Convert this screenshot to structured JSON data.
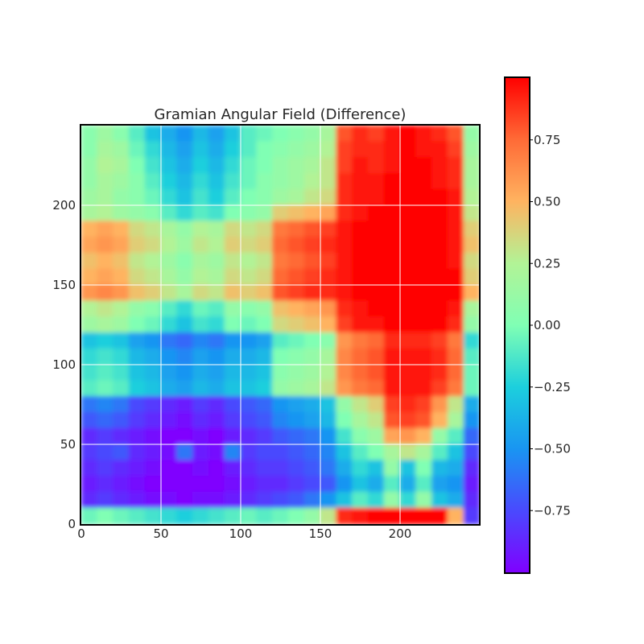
{
  "chart_data": {
    "type": "heatmap",
    "title": "Gramian Angular Field (Difference)",
    "xlabel": "",
    "ylabel": "",
    "xlim": [
      0,
      250
    ],
    "ylim": [
      0,
      250
    ],
    "grid": true,
    "origin": "lower",
    "x_ticks": [
      0,
      50,
      100,
      150,
      200
    ],
    "y_ticks": [
      0,
      50,
      100,
      150,
      200
    ],
    "colormap": "rainbow",
    "colorbar": {
      "range": [
        -1.0,
        1.0
      ],
      "ticks": [
        -0.75,
        -0.5,
        -0.25,
        0.0,
        0.25,
        0.5,
        0.75
      ],
      "tick_labels": [
        "−0.75",
        "−0.50",
        "−0.25",
        "0.00",
        "0.25",
        "0.50",
        "0.75"
      ]
    },
    "grid_resolution": [
      25,
      25
    ],
    "values": [
      [
        0.05,
        0.15,
        0.05,
        -0.1,
        -0.3,
        -0.4,
        -0.5,
        -0.35,
        -0.45,
        -0.3,
        -0.1,
        -0.05,
        0.0,
        0.05,
        0.1,
        0.2,
        0.8,
        0.9,
        0.85,
        0.95,
        1.0,
        0.95,
        0.9,
        0.8,
        0.1
      ],
      [
        0.05,
        0.2,
        0.15,
        -0.05,
        -0.2,
        -0.35,
        -0.45,
        -0.3,
        -0.4,
        -0.25,
        -0.1,
        0.0,
        0.05,
        0.1,
        0.15,
        0.25,
        0.85,
        0.9,
        0.9,
        0.95,
        1.0,
        0.95,
        0.95,
        0.85,
        0.15
      ],
      [
        0.1,
        0.25,
        0.2,
        0.0,
        -0.15,
        -0.3,
        -0.4,
        -0.25,
        -0.35,
        -0.2,
        -0.05,
        0.0,
        0.1,
        0.15,
        0.2,
        0.3,
        0.85,
        0.95,
        0.9,
        0.95,
        1.0,
        1.0,
        0.95,
        0.9,
        0.2
      ],
      [
        0.1,
        0.2,
        0.15,
        0.05,
        -0.1,
        -0.25,
        -0.35,
        -0.2,
        -0.3,
        -0.15,
        -0.05,
        0.05,
        0.1,
        0.15,
        0.25,
        0.3,
        0.9,
        0.95,
        0.95,
        1.0,
        1.0,
        1.0,
        0.95,
        0.9,
        0.2
      ],
      [
        0.15,
        0.2,
        0.1,
        0.05,
        -0.05,
        -0.2,
        -0.3,
        -0.15,
        -0.25,
        -0.1,
        0.0,
        0.05,
        0.15,
        0.2,
        0.3,
        0.35,
        0.9,
        0.95,
        0.95,
        1.0,
        1.0,
        1.0,
        1.0,
        0.95,
        0.25
      ],
      [
        0.2,
        0.25,
        0.15,
        0.1,
        0.05,
        -0.1,
        -0.2,
        -0.1,
        -0.15,
        0.0,
        0.05,
        0.1,
        0.4,
        0.45,
        0.5,
        0.55,
        0.9,
        0.95,
        1.0,
        1.0,
        1.0,
        1.0,
        1.0,
        0.95,
        0.3
      ],
      [
        0.5,
        0.55,
        0.5,
        0.35,
        0.3,
        0.2,
        0.1,
        0.25,
        0.2,
        0.35,
        0.3,
        0.35,
        0.7,
        0.75,
        0.8,
        0.85,
        0.95,
        1.0,
        1.0,
        1.0,
        1.0,
        1.0,
        1.0,
        0.95,
        0.4
      ],
      [
        0.55,
        0.6,
        0.55,
        0.4,
        0.35,
        0.25,
        0.15,
        0.3,
        0.25,
        0.4,
        0.35,
        0.4,
        0.75,
        0.8,
        0.85,
        0.9,
        0.95,
        1.0,
        1.0,
        1.0,
        1.0,
        1.0,
        1.0,
        0.95,
        0.45
      ],
      [
        0.45,
        0.5,
        0.45,
        0.3,
        0.25,
        0.15,
        0.05,
        0.2,
        0.15,
        0.3,
        0.25,
        0.3,
        0.7,
        0.75,
        0.8,
        0.85,
        0.95,
        1.0,
        1.0,
        1.0,
        1.0,
        1.0,
        1.0,
        0.95,
        0.35
      ],
      [
        0.5,
        0.55,
        0.5,
        0.35,
        0.3,
        0.2,
        0.1,
        0.25,
        0.2,
        0.35,
        0.3,
        0.35,
        0.75,
        0.8,
        0.85,
        0.9,
        0.95,
        1.0,
        1.0,
        1.0,
        1.0,
        1.0,
        1.0,
        1.0,
        0.4
      ],
      [
        0.6,
        0.65,
        0.6,
        0.45,
        0.4,
        0.3,
        0.2,
        0.35,
        0.3,
        0.45,
        0.4,
        0.45,
        0.8,
        0.85,
        0.9,
        0.9,
        0.95,
        1.0,
        1.0,
        1.0,
        1.0,
        1.0,
        1.0,
        1.0,
        0.5
      ],
      [
        0.25,
        0.3,
        0.25,
        0.1,
        0.05,
        -0.1,
        -0.2,
        -0.05,
        -0.1,
        0.1,
        0.05,
        0.1,
        0.45,
        0.5,
        0.55,
        0.6,
        0.9,
        0.95,
        1.0,
        1.0,
        1.0,
        1.0,
        1.0,
        0.95,
        0.2
      ],
      [
        0.15,
        0.2,
        0.15,
        0.0,
        -0.05,
        -0.2,
        -0.3,
        -0.15,
        -0.2,
        0.0,
        -0.05,
        0.0,
        0.35,
        0.4,
        0.45,
        0.5,
        0.85,
        0.95,
        0.95,
        1.0,
        1.0,
        1.0,
        1.0,
        0.9,
        0.1
      ],
      [
        -0.3,
        -0.25,
        -0.3,
        -0.45,
        -0.5,
        -0.6,
        -0.65,
        -0.55,
        -0.6,
        -0.5,
        -0.5,
        -0.45,
        -0.1,
        -0.05,
        0.0,
        0.05,
        0.6,
        0.7,
        0.75,
        0.9,
        0.9,
        0.9,
        0.85,
        0.7,
        -0.2
      ],
      [
        -0.2,
        -0.15,
        -0.2,
        -0.35,
        -0.4,
        -0.5,
        -0.55,
        -0.45,
        -0.5,
        -0.4,
        -0.4,
        -0.35,
        0.0,
        0.05,
        0.1,
        0.2,
        0.65,
        0.75,
        0.8,
        0.95,
        0.95,
        0.95,
        0.9,
        0.75,
        -0.1
      ],
      [
        -0.15,
        -0.1,
        -0.15,
        -0.3,
        -0.35,
        -0.45,
        -0.5,
        -0.4,
        -0.45,
        -0.35,
        -0.35,
        -0.3,
        0.05,
        0.1,
        0.15,
        0.25,
        0.65,
        0.75,
        0.8,
        0.95,
        0.95,
        0.95,
        0.9,
        0.75,
        -0.05
      ],
      [
        -0.1,
        -0.05,
        -0.1,
        -0.25,
        -0.3,
        -0.4,
        -0.45,
        -0.35,
        -0.4,
        -0.3,
        -0.3,
        -0.25,
        0.1,
        0.15,
        0.2,
        0.3,
        0.6,
        0.7,
        0.75,
        0.95,
        0.95,
        0.95,
        0.85,
        0.7,
        -0.05
      ],
      [
        -0.6,
        -0.55,
        -0.6,
        -0.75,
        -0.8,
        -0.85,
        -0.9,
        -0.8,
        -0.85,
        -0.75,
        -0.7,
        -0.65,
        -0.5,
        -0.45,
        -0.4,
        -0.3,
        0.1,
        0.3,
        0.4,
        0.85,
        0.9,
        0.85,
        0.6,
        0.3,
        -0.4
      ],
      [
        -0.7,
        -0.65,
        -0.7,
        -0.8,
        -0.85,
        -0.9,
        -0.95,
        -0.85,
        -0.9,
        -0.8,
        -0.75,
        -0.7,
        -0.55,
        -0.5,
        -0.45,
        -0.35,
        0.0,
        0.2,
        0.3,
        0.8,
        0.85,
        0.8,
        0.5,
        0.2,
        -0.5
      ],
      [
        -0.85,
        -0.8,
        -0.85,
        -0.9,
        -0.95,
        -1.0,
        -1.0,
        -0.95,
        -1.0,
        -0.9,
        -0.85,
        -0.8,
        -0.7,
        -0.65,
        -0.6,
        -0.5,
        -0.15,
        0.05,
        0.15,
        0.55,
        0.6,
        0.5,
        0.1,
        -0.1,
        -0.65
      ],
      [
        -0.8,
        -0.75,
        -0.7,
        -0.85,
        -0.9,
        -0.95,
        -0.6,
        -0.9,
        -0.95,
        -0.55,
        -0.8,
        -0.75,
        -0.75,
        -0.7,
        -0.65,
        -0.55,
        -0.3,
        -0.1,
        0.0,
        0.2,
        0.3,
        0.2,
        -0.1,
        -0.3,
        -0.75
      ],
      [
        -0.85,
        -0.8,
        -0.85,
        -0.9,
        -0.95,
        -1.0,
        -1.0,
        -0.95,
        -1.0,
        -0.9,
        -0.85,
        -0.8,
        -0.8,
        -0.75,
        -0.7,
        -0.6,
        -0.4,
        -0.2,
        -0.3,
        0.1,
        -0.3,
        0.0,
        -0.35,
        -0.4,
        -0.85
      ],
      [
        -0.9,
        -0.85,
        -0.9,
        -0.95,
        -1.0,
        -1.0,
        -1.0,
        -1.0,
        -1.0,
        -0.95,
        -0.9,
        -0.85,
        -0.85,
        -0.8,
        -0.75,
        -0.7,
        -0.5,
        -0.3,
        -0.4,
        -0.1,
        -0.4,
        -0.1,
        -0.45,
        -0.5,
        -0.9
      ],
      [
        -0.85,
        -0.8,
        -0.85,
        -0.9,
        -0.95,
        -0.95,
        -1.0,
        -0.95,
        -0.95,
        -0.9,
        -0.85,
        -0.8,
        -0.75,
        -0.7,
        -0.6,
        -0.5,
        -0.3,
        -0.1,
        -0.2,
        0.1,
        -0.2,
        0.1,
        -0.3,
        -0.4,
        -0.85
      ],
      [
        -0.05,
        0.0,
        -0.05,
        -0.1,
        -0.15,
        -0.2,
        -0.25,
        -0.2,
        -0.15,
        -0.1,
        -0.05,
        -0.1,
        -0.05,
        0.0,
        0.1,
        0.3,
        0.9,
        0.95,
        1.0,
        1.0,
        1.0,
        1.0,
        1.0,
        0.5,
        -0.8
      ]
    ]
  }
}
